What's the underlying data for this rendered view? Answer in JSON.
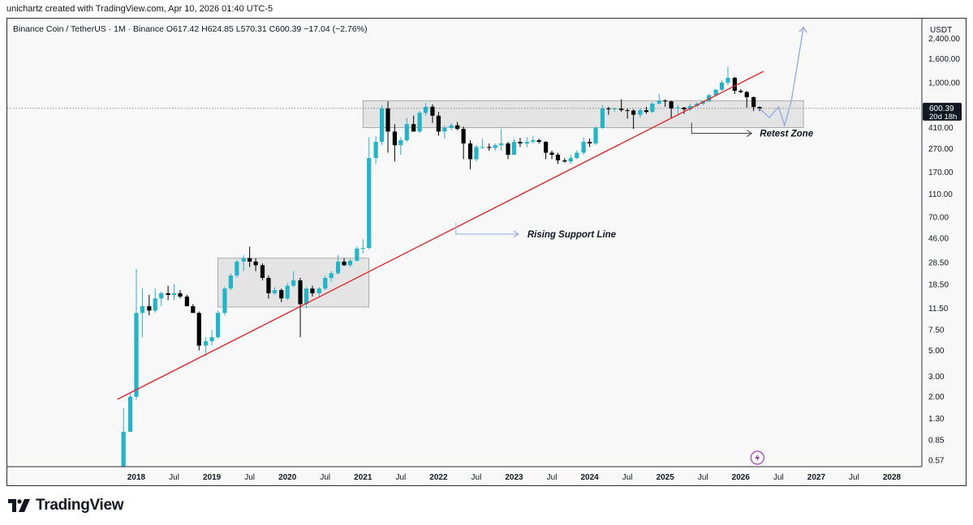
{
  "header": {
    "credit": "unichartz created with TradingView.com, Apr 10, 2026 01:40 UTC-5"
  },
  "legend": {
    "symbol": "Binance Coin / TetherUS · 1M · Binance",
    "open": "O617.42",
    "high": "H624.85",
    "low": "L570.31",
    "close": "C600.39",
    "change": "−17.04 (−2.76%)"
  },
  "brand": {
    "name": "TradingView"
  },
  "colors": {
    "up": "#22b5c9",
    "down": "#000000",
    "support": "#e0282e",
    "projection": "#8ea9e6",
    "zone": "#e0e0e0",
    "zone_border": "#9a9a9a"
  },
  "chart_data": {
    "type": "candlestick",
    "scale": "log",
    "currency": "USDT",
    "y_ticks": [
      {
        "label": "2,400.00",
        "value": 2400
      },
      {
        "label": "1,600.00",
        "value": 1600
      },
      {
        "label": "1,000.00",
        "value": 1000
      },
      {
        "label": "410.00",
        "value": 410
      },
      {
        "label": "270.00",
        "value": 270
      },
      {
        "label": "170.00",
        "value": 170
      },
      {
        "label": "110.00",
        "value": 110
      },
      {
        "label": "70.00",
        "value": 70
      },
      {
        "label": "46.00",
        "value": 46
      },
      {
        "label": "28.50",
        "value": 28.5
      },
      {
        "label": "18.50",
        "value": 18.5
      },
      {
        "label": "11.50",
        "value": 11.5
      },
      {
        "label": "7.50",
        "value": 7.5
      },
      {
        "label": "5.00",
        "value": 5
      },
      {
        "label": "3.00",
        "value": 3
      },
      {
        "label": "2.00",
        "value": 2
      },
      {
        "label": "1.30",
        "value": 1.3
      },
      {
        "label": "0.85",
        "value": 0.85
      },
      {
        "label": "0.57",
        "value": 0.57
      }
    ],
    "x_ticks": [
      {
        "label": "2018",
        "t": 2018.0,
        "bold": true
      },
      {
        "label": "Jul",
        "t": 2018.5
      },
      {
        "label": "2019",
        "t": 2019.0,
        "bold": true
      },
      {
        "label": "Jul",
        "t": 2019.5
      },
      {
        "label": "2020",
        "t": 2020.0,
        "bold": true
      },
      {
        "label": "Jul",
        "t": 2020.5
      },
      {
        "label": "2021",
        "t": 2021.0,
        "bold": true
      },
      {
        "label": "Jul",
        "t": 2021.5
      },
      {
        "label": "2022",
        "t": 2022.0,
        "bold": true
      },
      {
        "label": "Jul",
        "t": 2022.5
      },
      {
        "label": "2023",
        "t": 2023.0,
        "bold": true
      },
      {
        "label": "Jul",
        "t": 2023.5
      },
      {
        "label": "2024",
        "t": 2024.0,
        "bold": true
      },
      {
        "label": "Jul",
        "t": 2024.5
      },
      {
        "label": "2025",
        "t": 2025.0,
        "bold": true
      },
      {
        "label": "Jul",
        "t": 2025.5
      },
      {
        "label": "2026",
        "t": 2026.0,
        "bold": true
      },
      {
        "label": "Jul",
        "t": 2026.5
      },
      {
        "label": "2027",
        "t": 2027.0,
        "bold": true
      },
      {
        "label": "Jul",
        "t": 2027.5
      },
      {
        "label": "2028",
        "t": 2028.0,
        "bold": true
      }
    ],
    "last_price": {
      "label": "600.39",
      "value": 600.39,
      "countdown": "20d 18h"
    },
    "candles": [
      [
        2017.83,
        0.1,
        1.6,
        0.1,
        1.0
      ],
      [
        2017.92,
        1.0,
        2.2,
        1.0,
        2.0
      ],
      [
        2018.0,
        2.0,
        25.0,
        1.9,
        10.5
      ],
      [
        2018.08,
        10.5,
        17.0,
        6.5,
        12.0
      ],
      [
        2018.17,
        12.0,
        15.0,
        10.0,
        11.0
      ],
      [
        2018.25,
        11.0,
        17.0,
        10.5,
        14.0
      ],
      [
        2018.33,
        14.0,
        16.0,
        12.0,
        15.5
      ],
      [
        2018.42,
        15.5,
        18.0,
        13.5,
        15.0
      ],
      [
        2018.5,
        15.0,
        18.5,
        13.5,
        15.5
      ],
      [
        2018.58,
        15.5,
        16.5,
        14.0,
        14.5
      ],
      [
        2018.67,
        14.5,
        15.0,
        12.0,
        12.0
      ],
      [
        2018.75,
        12.0,
        12.5,
        10.5,
        10.5
      ],
      [
        2018.83,
        10.5,
        10.8,
        5.0,
        5.5
      ],
      [
        2018.92,
        5.5,
        6.5,
        4.5,
        6.0
      ],
      [
        2019.0,
        6.0,
        7.5,
        5.5,
        6.5
      ],
      [
        2019.08,
        6.5,
        11.0,
        6.3,
        10.5
      ],
      [
        2019.17,
        10.5,
        17.5,
        10.0,
        17.0
      ],
      [
        2019.25,
        17.0,
        23.0,
        16.5,
        22.0
      ],
      [
        2019.33,
        22.0,
        30.0,
        21.0,
        29.0
      ],
      [
        2019.42,
        29.0,
        33.0,
        24.0,
        31.0
      ],
      [
        2019.5,
        31.0,
        39.0,
        26.0,
        29.0
      ],
      [
        2019.58,
        29.0,
        31.0,
        24.0,
        27.0
      ],
      [
        2019.67,
        27.0,
        28.0,
        20.0,
        21.0
      ],
      [
        2019.75,
        21.0,
        22.0,
        14.0,
        15.5
      ],
      [
        2019.83,
        15.5,
        17.5,
        15.0,
        16.5
      ],
      [
        2019.92,
        16.5,
        17.0,
        13.0,
        14.0
      ],
      [
        2020.0,
        14.0,
        19.0,
        13.5,
        18.0
      ],
      [
        2020.08,
        18.0,
        24.0,
        17.5,
        20.0
      ],
      [
        2020.17,
        20.0,
        21.0,
        6.5,
        12.5
      ],
      [
        2020.25,
        12.5,
        17.5,
        11.5,
        17.0
      ],
      [
        2020.33,
        17.0,
        18.0,
        14.5,
        15.5
      ],
      [
        2020.42,
        15.5,
        17.5,
        14.5,
        17.0
      ],
      [
        2020.5,
        17.0,
        22.0,
        16.5,
        21.0
      ],
      [
        2020.58,
        21.0,
        24.0,
        19.5,
        23.0
      ],
      [
        2020.67,
        23.0,
        33.0,
        22.5,
        29.0
      ],
      [
        2020.75,
        29.0,
        31.0,
        26.5,
        27.0
      ],
      [
        2020.83,
        27.0,
        30.5,
        26.0,
        29.5
      ],
      [
        2020.92,
        29.5,
        39.0,
        29.0,
        37.5
      ],
      [
        2021.0,
        37.5,
        45.0,
        34.0,
        38.0
      ],
      [
        2021.08,
        38.0,
        340.0,
        37.0,
        225.0
      ],
      [
        2021.17,
        225.0,
        345.0,
        200.0,
        310.0
      ],
      [
        2021.25,
        310.0,
        640.0,
        290.0,
        600.0
      ],
      [
        2021.33,
        600.0,
        690.0,
        250.0,
        380.0
      ],
      [
        2021.42,
        380.0,
        440.0,
        210.0,
        290.0
      ],
      [
        2021.5,
        290.0,
        340.0,
        240.0,
        320.0
      ],
      [
        2021.58,
        320.0,
        500.0,
        310.0,
        440.0
      ],
      [
        2021.67,
        440.0,
        520.0,
        380.0,
        380.0
      ],
      [
        2021.75,
        380.0,
        570.0,
        370.0,
        550.0
      ],
      [
        2021.83,
        550.0,
        670.0,
        520.0,
        620.0
      ],
      [
        2021.92,
        620.0,
        650.0,
        450.0,
        520.0
      ],
      [
        2022.0,
        520.0,
        560.0,
        350.0,
        380.0
      ],
      [
        2022.08,
        380.0,
        430.0,
        330.0,
        410.0
      ],
      [
        2022.17,
        410.0,
        450.0,
        390.0,
        430.0
      ],
      [
        2022.25,
        430.0,
        460.0,
        390.0,
        400.0
      ],
      [
        2022.33,
        400.0,
        420.0,
        220.0,
        300.0
      ],
      [
        2022.42,
        300.0,
        320.0,
        180.0,
        220.0
      ],
      [
        2022.5,
        220.0,
        290.0,
        210.0,
        280.0
      ],
      [
        2022.58,
        280.0,
        330.0,
        270.0,
        280.0
      ],
      [
        2022.67,
        280.0,
        300.0,
        260.0,
        275.0
      ],
      [
        2022.75,
        275.0,
        300.0,
        260.0,
        290.0
      ],
      [
        2022.83,
        290.0,
        400.0,
        260.0,
        300.0
      ],
      [
        2022.92,
        300.0,
        310.0,
        220.0,
        240.0
      ],
      [
        2023.0,
        240.0,
        330.0,
        240.0,
        310.0
      ],
      [
        2023.08,
        310.0,
        335.0,
        280.0,
        300.0
      ],
      [
        2023.17,
        300.0,
        340.0,
        280.0,
        310.0
      ],
      [
        2023.25,
        310.0,
        350.0,
        300.0,
        320.0
      ],
      [
        2023.33,
        320.0,
        330.0,
        300.0,
        310.0
      ],
      [
        2023.42,
        310.0,
        315.0,
        220.0,
        250.0
      ],
      [
        2023.5,
        250.0,
        260.0,
        220.0,
        240.0
      ],
      [
        2023.58,
        240.0,
        250.0,
        200.0,
        215.0
      ],
      [
        2023.67,
        215.0,
        225.0,
        205.0,
        210.0
      ],
      [
        2023.75,
        210.0,
        240.0,
        200.0,
        225.0
      ],
      [
        2023.83,
        225.0,
        260.0,
        220.0,
        250.0
      ],
      [
        2023.92,
        250.0,
        340.0,
        240.0,
        310.0
      ],
      [
        2024.0,
        310.0,
        330.0,
        280.0,
        300.0
      ],
      [
        2024.08,
        300.0,
        420.0,
        290.0,
        410.0
      ],
      [
        2024.17,
        410.0,
        640.0,
        400.0,
        600.0
      ],
      [
        2024.25,
        600.0,
        620.0,
        530.0,
        590.0
      ],
      [
        2024.33,
        590.0,
        610.0,
        560.0,
        600.0
      ],
      [
        2024.42,
        600.0,
        720.0,
        560.0,
        580.0
      ],
      [
        2024.5,
        580.0,
        600.0,
        490.0,
        575.0
      ],
      [
        2024.58,
        575.0,
        590.0,
        400.0,
        530.0
      ],
      [
        2024.67,
        530.0,
        600.0,
        500.0,
        580.0
      ],
      [
        2024.75,
        580.0,
        620.0,
        540.0,
        560.0
      ],
      [
        2024.83,
        560.0,
        680.0,
        550.0,
        660.0
      ],
      [
        2024.92,
        660.0,
        800.0,
        650.0,
        700.0
      ],
      [
        2025.0,
        700.0,
        720.0,
        620.0,
        690.0
      ],
      [
        2025.08,
        690.0,
        700.0,
        500.0,
        600.0
      ],
      [
        2025.17,
        600.0,
        640.0,
        520.0,
        610.0
      ],
      [
        2025.25,
        610.0,
        620.0,
        540.0,
        590.0
      ],
      [
        2025.33,
        590.0,
        660.0,
        570.0,
        630.0
      ],
      [
        2025.42,
        630.0,
        680.0,
        620.0,
        660.0
      ],
      [
        2025.5,
        660.0,
        700.0,
        640.0,
        690.0
      ],
      [
        2025.58,
        690.0,
        800.0,
        680.0,
        780.0
      ],
      [
        2025.67,
        780.0,
        880.0,
        760.0,
        870.0
      ],
      [
        2025.75,
        870.0,
        1050.0,
        850.0,
        1000.0
      ],
      [
        2025.83,
        1000.0,
        1370.0,
        950.0,
        1100.0
      ],
      [
        2025.92,
        1100.0,
        1120.0,
        800.0,
        850.0
      ],
      [
        2026.0,
        850.0,
        880.0,
        810.0,
        830.0
      ],
      [
        2026.08,
        830.0,
        850.0,
        610.0,
        750.0
      ],
      [
        2026.17,
        750.0,
        760.0,
        570.0,
        617.42
      ],
      [
        2026.25,
        617.42,
        624.85,
        570.31,
        600.39
      ]
    ],
    "annotations": {
      "retest_label": "Retest Zone",
      "support_label": "Rising Support Line",
      "zones": [
        {
          "name": "retest-zone",
          "t0": 2021.0,
          "t1": 2026.83,
          "low": 410,
          "high": 700
        },
        {
          "name": "accumulation-zone",
          "t0": 2019.08,
          "t1": 2021.08,
          "low": 11.8,
          "high": 31
        }
      ],
      "support_line": {
        "t0": 2017.75,
        "v0": 1.9,
        "t1": 2026.3,
        "v1": 1250
      },
      "projection_path": [
        [
          2026.25,
          600
        ],
        [
          2026.38,
          500
        ],
        [
          2026.5,
          620
        ],
        [
          2026.58,
          430
        ],
        [
          2026.67,
          700
        ],
        [
          2026.83,
          3000
        ]
      ]
    }
  }
}
